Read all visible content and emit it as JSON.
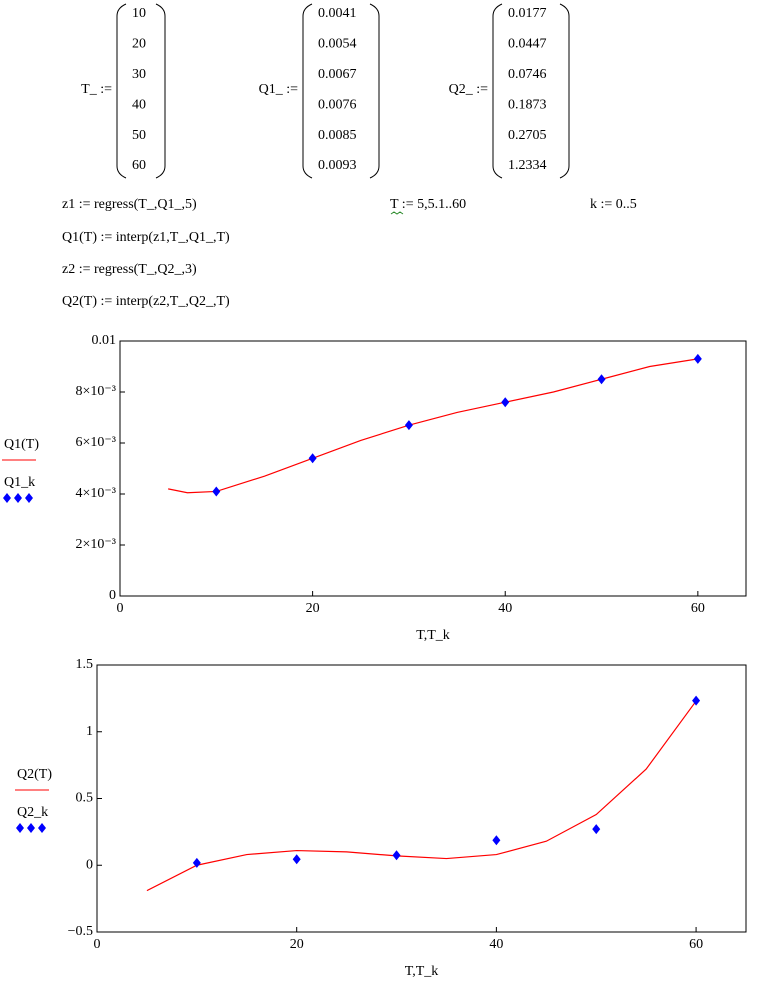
{
  "worksheet": {
    "matrices": [
      {
        "label": "T_ :=",
        "values": [
          10,
          20,
          30,
          40,
          50,
          60
        ]
      },
      {
        "label": "Q1_ :=",
        "values": [
          0.0041,
          0.0054,
          0.0067,
          0.0076,
          0.0085,
          0.0093
        ]
      },
      {
        "label": "Q2_ :=",
        "values": [
          0.0177,
          0.0447,
          0.0746,
          0.1873,
          0.2705,
          1.2334
        ]
      }
    ],
    "formulas": [
      "z1 := regress(T_,Q1_,5)",
      "T := 5,5.1..60",
      "k := 0..5",
      "Q1(T) := interp(z1,T_,Q1_,T)",
      "z2 := regress(T_,Q2_,3)",
      "Q2(T) := interp(z2,T_,Q2_,T)"
    ]
  },
  "chart_data": [
    {
      "type": "line",
      "x_label": "T,T_k",
      "xlim": [
        0,
        65
      ],
      "xticks": [
        0,
        20,
        40,
        60
      ],
      "ylim": [
        0,
        0.01
      ],
      "yticks": [
        0,
        {
          "value": 0.002,
          "label": "2×10⁻³"
        },
        {
          "value": 0.004,
          "label": "4×10⁻³"
        },
        {
          "value": 0.006,
          "label": "6×10⁻³"
        },
        {
          "value": 0.008,
          "label": "8×10⁻³"
        },
        0.01
      ],
      "series": [
        {
          "name": "Q1(T)",
          "type": "line",
          "color": "#ff0000",
          "x": [
            5,
            7,
            10,
            15,
            20,
            25,
            30,
            35,
            40,
            45,
            50,
            55,
            60
          ],
          "values": [
            0.0042,
            0.00405,
            0.0041,
            0.0047,
            0.0054,
            0.0061,
            0.0067,
            0.0072,
            0.0076,
            0.008,
            0.0085,
            0.009,
            0.0093
          ]
        },
        {
          "name": "Q1_k",
          "type": "scatter",
          "color": "#0000ff",
          "x": [
            10,
            20,
            30,
            40,
            50,
            60
          ],
          "values": [
            0.0041,
            0.0054,
            0.0067,
            0.0076,
            0.0085,
            0.0093
          ]
        }
      ]
    },
    {
      "type": "line",
      "x_label": "T,T_k",
      "xlim": [
        0,
        65
      ],
      "xticks": [
        0,
        20,
        40,
        60
      ],
      "ylim": [
        -0.5,
        1.5
      ],
      "yticks": [
        {
          "value": -0.5,
          "label": "−0.5"
        },
        0,
        0.5,
        1,
        1.5
      ],
      "series": [
        {
          "name": "Q2(T)",
          "type": "line",
          "color": "#ff0000",
          "x": [
            5,
            10,
            15,
            20,
            25,
            30,
            35,
            40,
            45,
            50,
            55,
            60
          ],
          "values": [
            -0.19,
            0.0,
            0.08,
            0.11,
            0.1,
            0.07,
            0.05,
            0.08,
            0.18,
            0.38,
            0.72,
            1.23
          ]
        },
        {
          "name": "Q2_k",
          "type": "scatter",
          "color": "#0000ff",
          "x": [
            10,
            20,
            30,
            40,
            50,
            60
          ],
          "values": [
            0.0177,
            0.0447,
            0.0746,
            0.1873,
            0.2705,
            1.2334
          ]
        }
      ]
    }
  ]
}
